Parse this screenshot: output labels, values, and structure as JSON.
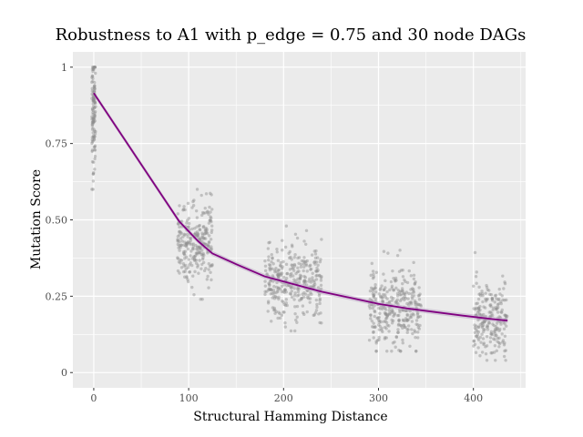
{
  "chart_data": {
    "type": "scatter",
    "title": "Robustness to A1 with p_edge = 0.75 and 30 node DAGs",
    "xlabel": "Structural Hamming Distance",
    "ylabel": "Mutation Score",
    "xlim": [
      -22,
      455
    ],
    "ylim": [
      -0.05,
      1.05
    ],
    "x_ticks": [
      0,
      100,
      200,
      300,
      400
    ],
    "x_tick_labels": [
      "0",
      "100",
      "200",
      "300",
      "400"
    ],
    "y_ticks": [
      0,
      0.25,
      0.5,
      0.75,
      1
    ],
    "y_tick_labels": [
      "0",
      "0.25",
      "0.50",
      "0.75",
      "1"
    ],
    "grid": true,
    "legend": "none",
    "colors": {
      "panel": "#ebebeb",
      "grid_major": "#ffffff",
      "points": "#8c8c8c",
      "trend": "#800080",
      "ribbon": "#b9a3c4"
    },
    "point_clusters": [
      {
        "x_range": [
          -2,
          2
        ],
        "y_mean": 0.86,
        "y_sd": 0.1,
        "y_range": [
          0.6,
          1.0
        ],
        "n": 120
      },
      {
        "x_range": [
          88,
          125
        ],
        "y_mean": 0.43,
        "y_sd": 0.065,
        "y_range": [
          0.24,
          0.6
        ],
        "n": 260
      },
      {
        "x_range": [
          180,
          240
        ],
        "y_mean": 0.3,
        "y_sd": 0.065,
        "y_range": [
          0.13,
          0.54
        ],
        "n": 330
      },
      {
        "x_range": [
          290,
          345
        ],
        "y_mean": 0.21,
        "y_sd": 0.06,
        "y_range": [
          0.07,
          0.44
        ],
        "n": 320
      },
      {
        "x_range": [
          400,
          436
        ],
        "y_mean": 0.17,
        "y_sd": 0.065,
        "y_range": [
          0.04,
          0.42
        ],
        "n": 220
      }
    ],
    "trend_line": {
      "x": [
        0,
        30,
        60,
        90,
        110,
        125,
        150,
        180,
        210,
        240,
        270,
        300,
        330,
        360,
        390,
        420,
        436
      ],
      "y": [
        0.915,
        0.775,
        0.635,
        0.495,
        0.43,
        0.39,
        0.355,
        0.315,
        0.29,
        0.265,
        0.245,
        0.225,
        0.21,
        0.198,
        0.186,
        0.175,
        0.17
      ]
    }
  }
}
